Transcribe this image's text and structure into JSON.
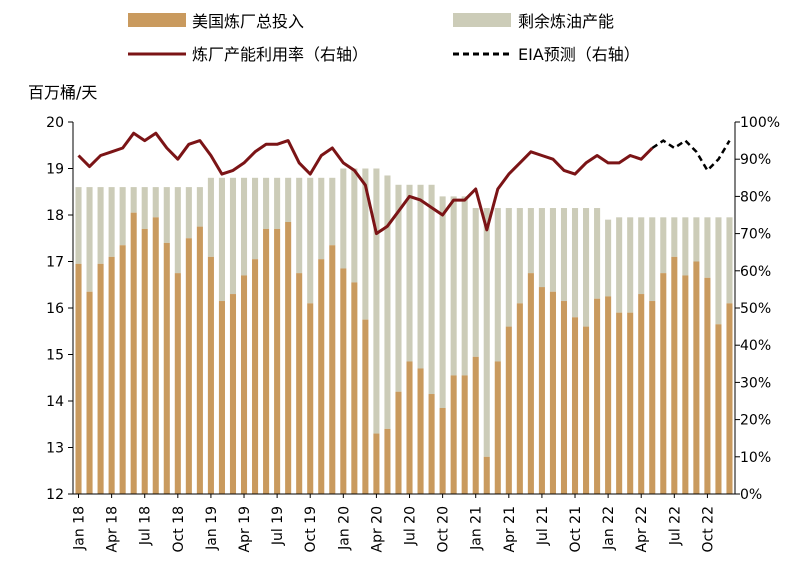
{
  "chart_data": {
    "type": "bar+line",
    "left_unit": "百万桶/天",
    "legend": {
      "input": "美国炼厂总投入",
      "spare": "剩余炼油产能",
      "util": "炼厂产能利用率（右轴）",
      "forecast": "EIA预测（右轴）"
    },
    "colors": {
      "input": "#C99A5E",
      "spare": "#CCCCB8",
      "util": "#7B1416",
      "forecast": "#000000"
    },
    "y_left": {
      "min": 12,
      "max": 20,
      "ticks": [
        "12",
        "13",
        "14",
        "15",
        "16",
        "17",
        "18",
        "19",
        "20"
      ]
    },
    "y_right": {
      "min": 0,
      "max": 100,
      "ticks": [
        "0%",
        "10%",
        "20%",
        "30%",
        "40%",
        "50%",
        "60%",
        "70%",
        "80%",
        "90%",
        "100%"
      ]
    },
    "x_tick_labels": [
      "Jan 18",
      "Apr 18",
      "Jul 18",
      "Oct 18",
      "Jan 19",
      "Apr 19",
      "Jul 19",
      "Oct 19",
      "Jan 20",
      "Apr 20",
      "Jul 20",
      "Oct 20",
      "Jan 21",
      "Apr 21",
      "Jul 21",
      "Oct 21",
      "Jan 22",
      "Apr 22",
      "Jul 22",
      "Oct 22"
    ],
    "months": [
      "2018-01",
      "2018-02",
      "2018-03",
      "2018-04",
      "2018-05",
      "2018-06",
      "2018-07",
      "2018-08",
      "2018-09",
      "2018-10",
      "2018-11",
      "2018-12",
      "2019-01",
      "2019-02",
      "2019-03",
      "2019-04",
      "2019-05",
      "2019-06",
      "2019-07",
      "2019-08",
      "2019-09",
      "2019-10",
      "2019-11",
      "2019-12",
      "2020-01",
      "2020-02",
      "2020-03",
      "2020-04",
      "2020-05",
      "2020-06",
      "2020-07",
      "2020-08",
      "2020-09",
      "2020-10",
      "2020-11",
      "2020-12",
      "2021-01",
      "2021-02",
      "2021-03",
      "2021-04",
      "2021-05",
      "2021-06",
      "2021-07",
      "2021-08",
      "2021-09",
      "2021-10",
      "2021-11",
      "2021-12",
      "2022-01",
      "2022-02",
      "2022-03",
      "2022-04",
      "2022-05",
      "2022-06",
      "2022-07",
      "2022-08",
      "2022-09",
      "2022-10",
      "2022-11",
      "2022-12"
    ],
    "input": [
      16.95,
      16.35,
      16.95,
      17.1,
      17.35,
      18.05,
      17.7,
      17.95,
      17.4,
      16.75,
      17.5,
      17.75,
      17.1,
      16.15,
      16.3,
      16.7,
      17.05,
      17.7,
      17.7,
      17.85,
      16.75,
      16.1,
      17.05,
      17.35,
      16.85,
      16.55,
      15.75,
      13.3,
      13.4,
      14.2,
      14.85,
      14.7,
      14.15,
      13.85,
      14.55,
      14.55,
      14.95,
      12.8,
      14.85,
      15.6,
      16.1,
      16.75,
      16.45,
      16.35,
      16.15,
      15.8,
      15.6,
      16.2,
      16.25,
      15.9,
      15.9,
      16.3,
      16.15,
      16.75,
      17.1,
      16.7,
      17.0,
      16.65,
      15.65,
      16.1
    ],
    "capacity": [
      18.6,
      18.6,
      18.6,
      18.6,
      18.6,
      18.6,
      18.6,
      18.6,
      18.6,
      18.6,
      18.6,
      18.6,
      18.8,
      18.8,
      18.8,
      18.8,
      18.8,
      18.8,
      18.8,
      18.8,
      18.8,
      18.8,
      18.8,
      18.8,
      19.0,
      19.0,
      19.0,
      19.0,
      18.85,
      18.65,
      18.65,
      18.65,
      18.65,
      18.4,
      18.4,
      18.4,
      18.15,
      18.15,
      18.15,
      18.15,
      18.15,
      18.15,
      18.15,
      18.15,
      18.15,
      18.15,
      18.15,
      18.15,
      17.9,
      17.95,
      17.95,
      17.95,
      17.95,
      17.95,
      17.95,
      17.95,
      17.95,
      17.95,
      17.95,
      17.95
    ],
    "utilization": [
      91,
      88,
      91,
      92,
      93,
      97,
      95,
      97,
      93,
      90,
      94,
      95,
      91,
      86,
      87,
      89,
      92,
      94,
      94,
      95,
      89,
      86,
      91,
      93,
      89,
      87,
      83,
      70,
      72,
      76,
      80,
      79,
      77,
      75,
      79,
      79,
      82,
      71,
      82,
      86,
      89,
      92,
      91,
      90,
      87,
      86,
      89,
      91,
      89,
      89,
      91,
      90,
      93
    ],
    "forecast_start_index": 52,
    "forecast": [
      93,
      95,
      93,
      95,
      92,
      87,
      90,
      95
    ]
  }
}
